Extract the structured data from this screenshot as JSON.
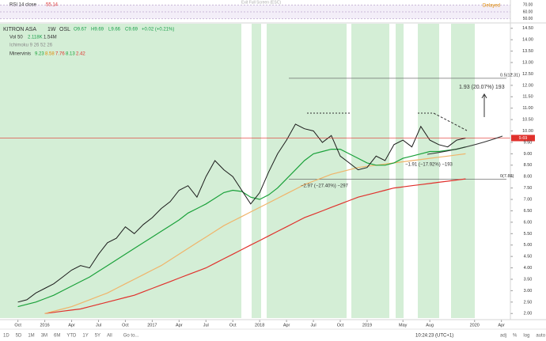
{
  "header": {
    "symbol": "KITRON ASA",
    "interval": "1W",
    "exchange": "OSL",
    "ohlc": [
      "O9.67",
      "H9.69",
      "L9.66",
      "C9.69",
      "+0.02 (+0.21%)"
    ],
    "volume": [
      "Vol 50",
      "2.118K",
      "1.54M"
    ],
    "ichimoku": "Ichimoku 9 26 52 26",
    "minervini": [
      "Minervinis",
      "9.23",
      "8.58",
      "7.76",
      "8.13",
      "2.42"
    ]
  },
  "rsi": {
    "label": "RSI 14 close",
    "value": 55.14,
    "ylim": [
      45,
      75
    ],
    "yticks": [
      {
        "value": 70,
        "label": "70.00"
      },
      {
        "value": 60,
        "label": "60.00"
      },
      {
        "value": 50,
        "label": "50.00"
      }
    ],
    "status": "Delayed",
    "hint": "Exit Full Screen (ESC)"
  },
  "chart_data": {
    "type": "line",
    "x": [
      "2015-10",
      "2015-11",
      "2015-12",
      "2016-01",
      "2016-02",
      "2016-03",
      "2016-04",
      "2016-05",
      "2016-06",
      "2016-07",
      "2016-08",
      "2016-09",
      "2016-10",
      "2016-11",
      "2016-12",
      "2017-01",
      "2017-02",
      "2017-03",
      "2017-04",
      "2017-05",
      "2017-06",
      "2017-07",
      "2017-08",
      "2017-09",
      "2017-10",
      "2017-11",
      "2017-12",
      "2018-01",
      "2018-02",
      "2018-03",
      "2018-04",
      "2018-05",
      "2018-06",
      "2018-07",
      "2018-08",
      "2018-09",
      "2018-10",
      "2018-11",
      "2018-12",
      "2019-01",
      "2019-02",
      "2019-03",
      "2019-04",
      "2019-05",
      "2019-06",
      "2019-07",
      "2019-08",
      "2019-09",
      "2019-10",
      "2019-11",
      "2019-12"
    ],
    "series": [
      {
        "color": "#1b1b1b",
        "values": [
          2.5,
          2.6,
          2.9,
          3.1,
          3.3,
          3.6,
          3.9,
          4.1,
          4.0,
          4.6,
          5.1,
          5.3,
          5.8,
          5.5,
          5.9,
          6.2,
          6.6,
          6.9,
          7.4,
          7.6,
          7.1,
          8.0,
          8.7,
          8.3,
          8.0,
          7.4,
          6.8,
          7.3,
          8.2,
          9.0,
          9.6,
          10.3,
          10.1,
          10.0,
          9.5,
          9.8,
          8.9,
          8.6,
          8.3,
          8.4,
          8.9,
          8.7,
          9.4,
          9.6,
          9.3,
          10.2,
          9.6,
          9.4,
          9.3,
          9.6,
          9.69
        ]
      },
      {
        "color": "#1aa13a",
        "values": [
          2.3,
          2.4,
          2.5,
          2.65,
          2.8,
          3.0,
          3.2,
          3.4,
          3.6,
          3.85,
          4.1,
          4.35,
          4.6,
          4.85,
          5.1,
          5.35,
          5.6,
          5.85,
          6.1,
          6.4,
          6.6,
          6.8,
          7.05,
          7.3,
          7.4,
          7.35,
          7.1,
          7.0,
          7.2,
          7.5,
          7.9,
          8.3,
          8.7,
          9.0,
          9.1,
          9.2,
          9.2,
          9.0,
          8.8,
          8.6,
          8.5,
          8.5,
          8.6,
          8.8,
          8.9,
          9.0,
          9.1,
          9.1,
          9.15,
          9.2,
          9.3
        ]
      },
      {
        "color": "#f0b46a",
        "values": [
          null,
          null,
          null,
          2.0,
          2.1,
          2.2,
          2.3,
          2.45,
          2.6,
          2.75,
          2.9,
          3.1,
          3.3,
          3.5,
          3.7,
          3.9,
          4.1,
          4.35,
          4.6,
          4.85,
          5.1,
          5.35,
          5.6,
          5.85,
          6.05,
          6.25,
          6.45,
          6.65,
          6.85,
          7.05,
          7.25,
          7.45,
          7.65,
          7.8,
          7.95,
          8.1,
          8.2,
          8.3,
          8.4,
          8.45,
          8.5,
          8.55,
          8.6,
          8.65,
          8.7,
          8.75,
          8.8,
          8.85,
          8.9,
          8.95,
          9.0
        ]
      },
      {
        "color": "#e0312c",
        "values": [
          null,
          null,
          null,
          2.0,
          2.05,
          2.1,
          2.15,
          2.2,
          2.3,
          2.4,
          2.5,
          2.6,
          2.7,
          2.8,
          2.95,
          3.1,
          3.25,
          3.4,
          3.55,
          3.7,
          3.85,
          4.0,
          4.2,
          4.4,
          4.6,
          4.8,
          5.0,
          5.2,
          5.4,
          5.6,
          5.8,
          6.0,
          6.2,
          6.35,
          6.5,
          6.65,
          6.8,
          6.95,
          7.1,
          7.2,
          7.3,
          7.4,
          7.5,
          7.55,
          7.6,
          7.65,
          7.7,
          7.75,
          7.8,
          7.85,
          7.9
        ]
      }
    ],
    "xlim": [
      "2015-08",
      "2020-05"
    ],
    "xticks": [
      {
        "value": "2015-10",
        "label": "Oct"
      },
      {
        "value": "2016-01",
        "label": "2016"
      },
      {
        "value": "2016-04",
        "label": "Apr"
      },
      {
        "value": "2016-07",
        "label": "Jul"
      },
      {
        "value": "2016-10",
        "label": "Oct"
      },
      {
        "value": "2017-01",
        "label": "2017"
      },
      {
        "value": "2017-04",
        "label": "Apr"
      },
      {
        "value": "2017-07",
        "label": "Jul"
      },
      {
        "value": "2017-10",
        "label": "Oct"
      },
      {
        "value": "2018-01",
        "label": "2018"
      },
      {
        "value": "2018-04",
        "label": "Apr"
      },
      {
        "value": "2018-07",
        "label": "Jul"
      },
      {
        "value": "2018-10",
        "label": "Oct"
      },
      {
        "value": "2019-01",
        "label": "2019"
      },
      {
        "value": "2019-05",
        "label": "May"
      },
      {
        "value": "2019-08",
        "label": "Aug"
      },
      {
        "value": "2020-01",
        "label": "2020"
      },
      {
        "value": "2020-04",
        "label": "Apr"
      }
    ],
    "ylim": [
      1.8,
      14.7
    ],
    "yticks": [
      {
        "value": 2,
        "label": "2.00"
      },
      {
        "value": 2.5,
        "label": "2.50"
      },
      {
        "value": 3,
        "label": "3.00"
      },
      {
        "value": 3.5,
        "label": "3.50"
      },
      {
        "value": 4,
        "label": "4.00"
      },
      {
        "value": 4.5,
        "label": "4.50"
      },
      {
        "value": 5,
        "label": "5.00"
      },
      {
        "value": 5.5,
        "label": "5.50"
      },
      {
        "value": 6,
        "label": "6.00"
      },
      {
        "value": 6.5,
        "label": "6.50"
      },
      {
        "value": 7,
        "label": "7.00"
      },
      {
        "value": 7.5,
        "label": "7.50"
      },
      {
        "value": 8,
        "label": "8.00"
      },
      {
        "value": 8.5,
        "label": "8.50"
      },
      {
        "value": 9,
        "label": "9.00"
      },
      {
        "value": 9.5,
        "label": "9.50"
      },
      {
        "value": 10,
        "label": "10.00"
      },
      {
        "value": 10.5,
        "label": "10.50"
      },
      {
        "value": 11,
        "label": "11.00"
      },
      {
        "value": 11.5,
        "label": "11.50"
      },
      {
        "value": 12,
        "label": "12.00"
      },
      {
        "value": 12.5,
        "label": "12.50"
      },
      {
        "value": 13,
        "label": "13.00"
      },
      {
        "value": 13.5,
        "label": "13.50"
      },
      {
        "value": 14,
        "label": "14.00"
      },
      {
        "value": 14.5,
        "label": "14.50"
      }
    ],
    "levels": [
      {
        "value": 12.31,
        "label": "0.5(12.31)"
      },
      {
        "value": 7.88,
        "label": "0(7.88)"
      }
    ],
    "last": {
      "value": 9.69,
      "label": "9.69"
    },
    "annotations": [
      "1.93 (20.07%) 193",
      "−2.97 (−27.40%) −297",
      "−1.91 (−17.92%) −193"
    ]
  },
  "toolbar": {
    "ranges": [
      "1D",
      "5D",
      "1M",
      "3M",
      "6M",
      "YTD",
      "1Y",
      "5Y",
      "All"
    ],
    "goto": "Go to...",
    "time": "10:24:23 (UTC+1)",
    "options": [
      "adj",
      "%",
      "log",
      "auto"
    ]
  }
}
